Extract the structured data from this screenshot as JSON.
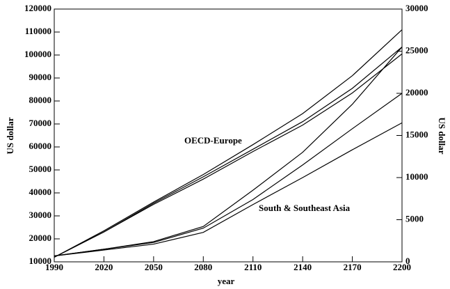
{
  "chart_data": {
    "type": "line",
    "x": [
      1990,
      2020,
      2050,
      2080,
      2110,
      2140,
      2170,
      2200
    ],
    "xlim": [
      1990,
      2200
    ],
    "xticks": [
      1990,
      2020,
      2050,
      2080,
      2110,
      2140,
      2170,
      2200
    ],
    "xlabel": "year",
    "ylabel": "US dollar",
    "y2label": "US dollar",
    "ylim": [
      10000,
      120000
    ],
    "yticks": [
      10000,
      20000,
      30000,
      40000,
      50000,
      60000,
      70000,
      80000,
      90000,
      100000,
      110000,
      120000
    ],
    "y2lim": [
      0,
      30000
    ],
    "y2ticks": [
      0,
      5000,
      10000,
      15000,
      20000,
      25000,
      30000
    ],
    "annotations": [
      "OECD-Europe",
      "South & Southeast Asia"
    ],
    "series": [
      {
        "color": "#000000",
        "values": [
          12000,
          23500,
          36000,
          48000,
          61000,
          74500,
          91000,
          111000
        ]
      },
      {
        "color": "#000000",
        "values": [
          12000,
          23000,
          35500,
          47000,
          59000,
          71000,
          85500,
          103500
        ]
      },
      {
        "color": "#000000",
        "values": [
          12000,
          23000,
          35000,
          46000,
          58000,
          69500,
          83500,
          100500
        ]
      },
      {
        "color": "#000000",
        "axis": "y2",
        "values": [
          700,
          1500,
          2400,
          4200,
          8500,
          13000,
          18700,
          25500
        ]
      },
      {
        "color": "#000000",
        "axis": "y2",
        "values": [
          700,
          1500,
          2300,
          4000,
          7400,
          11500,
          15800,
          20000
        ]
      },
      {
        "color": "#000000",
        "axis": "y2",
        "values": [
          700,
          1400,
          2100,
          3500,
          6800,
          10000,
          13300,
          16500
        ]
      }
    ]
  }
}
